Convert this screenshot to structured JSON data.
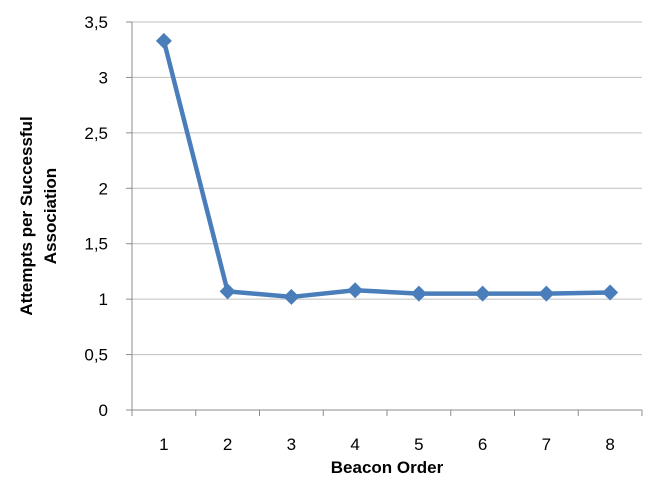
{
  "chart_data": {
    "type": "line",
    "title": "",
    "xlabel": "Beacon Order",
    "ylabel_lines": [
      "Attempts per Successful",
      "Association"
    ],
    "categories": [
      "1",
      "2",
      "3",
      "4",
      "5",
      "6",
      "7",
      "8"
    ],
    "series": [
      {
        "values": [
          3.33,
          1.07,
          1.02,
          1.08,
          1.05,
          1.05,
          1.05,
          1.06
        ]
      }
    ],
    "ylim": [
      0,
      3.5
    ],
    "yticks": [
      0,
      0.5,
      1,
      1.5,
      2,
      2.5,
      3,
      3.5
    ],
    "ytick_labels": [
      "0",
      "0,5",
      "1",
      "1,5",
      "2",
      "2,5",
      "3",
      "3,5"
    ],
    "grid": true,
    "legend": "none",
    "marker": "diamond",
    "colors": {
      "line": "#4a7ebb",
      "grid": "#bfbfbf",
      "axis": "#8c8c8c"
    }
  }
}
